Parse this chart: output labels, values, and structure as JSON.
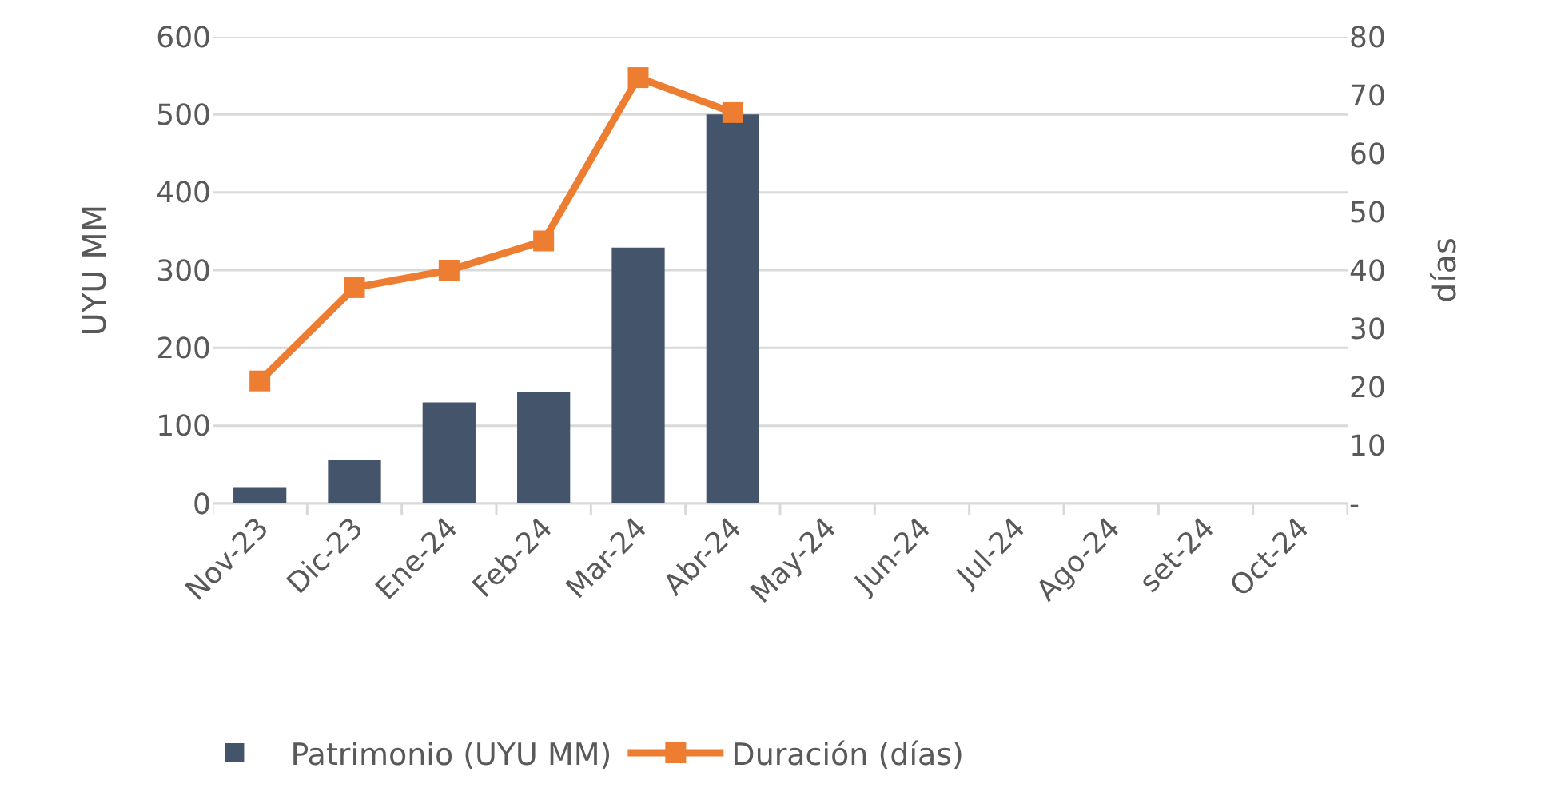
{
  "chart_data": {
    "type": "bar",
    "ylabel": "UYU MM",
    "y2label": "días",
    "categories": [
      "Nov-23",
      "Dic-23",
      "Ene-24",
      "Feb-24",
      "Mar-24",
      "Abr-24",
      "May-24",
      "Jun-24",
      "Jul-24",
      "Ago-24",
      "set-24",
      "Oct-24"
    ],
    "series": [
      {
        "name": "Patrimonio (UYU MM)",
        "color": "#44546a",
        "values": [
          21,
          56,
          130,
          143,
          329,
          500,
          null,
          null,
          null,
          null,
          null,
          null
        ]
      },
      {
        "name": "Duración (días)",
        "type": "line",
        "axis": "y2",
        "color": "#ed7d31",
        "values": [
          21,
          37,
          40,
          45,
          73,
          67,
          null,
          null,
          null,
          null,
          null,
          null
        ]
      }
    ],
    "ylim": [
      0,
      600
    ],
    "yticks": [
      0,
      100,
      200,
      300,
      400,
      500,
      600
    ],
    "y2lim": [
      0,
      80
    ],
    "y2ticks": [
      {
        "value": 0,
        "label": "-"
      },
      10,
      20,
      30,
      40,
      50,
      60,
      70,
      80
    ],
    "marker": "square",
    "line_style": "solid",
    "grid": "y",
    "legend": "bottom"
  }
}
